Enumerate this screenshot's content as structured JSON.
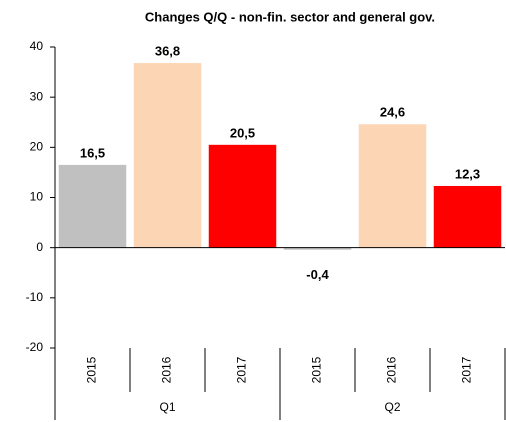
{
  "chart_data": {
    "type": "bar",
    "title": "Changes Q/Q - non-fin. sector and general gov.",
    "categories": [
      "2015",
      "2016",
      "2017",
      "2015",
      "2016",
      "2017"
    ],
    "groups": [
      "Q1",
      "Q2"
    ],
    "values": [
      16.5,
      36.8,
      20.5,
      -0.4,
      24.6,
      12.3
    ],
    "value_labels": [
      "16,5",
      "36,8",
      "20,5",
      "-0,4",
      "24,6",
      "12,3"
    ],
    "colors": [
      "#c0c0c0",
      "#fcd5b4",
      "#ff0000",
      "#c0c0c0",
      "#fcd5b4",
      "#ff0000"
    ],
    "ylim": [
      -20,
      40
    ],
    "yticks": [
      -20,
      -10,
      0,
      10,
      20,
      30,
      40
    ],
    "grid": false
  }
}
